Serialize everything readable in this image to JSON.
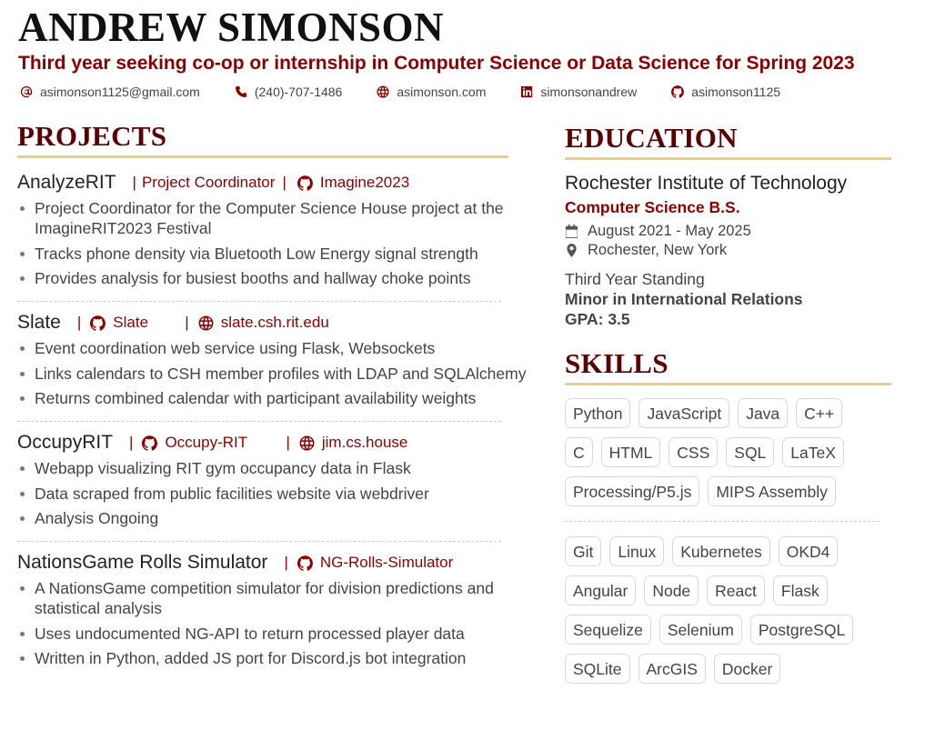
{
  "header": {
    "name": "ANDREW SIMONSON",
    "tagline": "Third year seeking co-op or internship in Computer Science or Data Science for Spring 2023",
    "contacts": [
      {
        "icon": "at-icon",
        "text": "asimonson1125@gmail.com"
      },
      {
        "icon": "phone-icon",
        "text": "(240)-707-1486"
      },
      {
        "icon": "globe-icon",
        "text": "asimonson.com"
      },
      {
        "icon": "linkedin-icon",
        "text": "simonsonandrew"
      },
      {
        "icon": "github-icon",
        "text": "asimonson1125"
      }
    ]
  },
  "projects": {
    "heading": "PROJECTS",
    "items": [
      {
        "title": "AnalyzeRIT",
        "role": "Project Coordinator",
        "links": [
          {
            "icon": "github-icon",
            "text": "Imagine2023"
          }
        ],
        "bullets": [
          "Project Coordinator for the Computer Science House project at the ImagineRIT2023 Festival",
          "Tracks phone density via Bluetooth Low Energy signal strength",
          "Provides analysis for busiest booths and hallway choke points"
        ]
      },
      {
        "title": "Slate",
        "links": [
          {
            "icon": "github-icon",
            "text": "Slate"
          },
          {
            "icon": "globe-icon",
            "text": "slate.csh.rit.edu"
          }
        ],
        "bullets": [
          "Event coordination web service using Flask, Websockets",
          "Links calendars to CSH member profiles with LDAP and SQLAlchemy",
          "Returns combined calendar with participant availability weights"
        ]
      },
      {
        "title": "OccupyRIT",
        "links": [
          {
            "icon": "github-icon",
            "text": "Occupy-RIT"
          },
          {
            "icon": "globe-icon",
            "text": "jim.cs.house"
          }
        ],
        "bullets": [
          "Webapp visualizing RIT gym occupancy data in Flask",
          "Data scraped from public facilities website via webdriver",
          "Analysis Ongoing"
        ]
      },
      {
        "title": "NationsGame Rolls Simulator",
        "links": [
          {
            "icon": "github-icon",
            "text": "NG-Rolls-Simulator"
          }
        ],
        "bullets": [
          "A NationsGame competition simulator for division predictions and statistical analysis",
          "Uses undocumented NG-API to return processed player data",
          "Written in Python, added JS port for Discord.js bot integration"
        ]
      }
    ]
  },
  "education": {
    "heading": "EDUCATION",
    "school": "Rochester Institute of Technology",
    "degree": "Computer Science B.S.",
    "dates": "August 2021 - May 2025",
    "location": "Rochester, New York",
    "standing": "Third Year Standing",
    "minor": "Minor in International Relations",
    "gpa": "GPA: 3.5"
  },
  "skills": {
    "heading": "SKILLS",
    "languages": [
      "Python",
      "JavaScript",
      "Java",
      "C++",
      "C",
      "HTML",
      "CSS",
      "SQL",
      "LaTeX",
      "Processing/P5.js",
      "MIPS Assembly"
    ],
    "tools": [
      "Git",
      "Linux",
      "Kubernetes",
      "OKD4",
      "Angular",
      "Node",
      "React",
      "Flask",
      "Sequelize",
      "Selenium",
      "PostgreSQL",
      "SQLite",
      "ArcGIS",
      "Docker"
    ]
  }
}
